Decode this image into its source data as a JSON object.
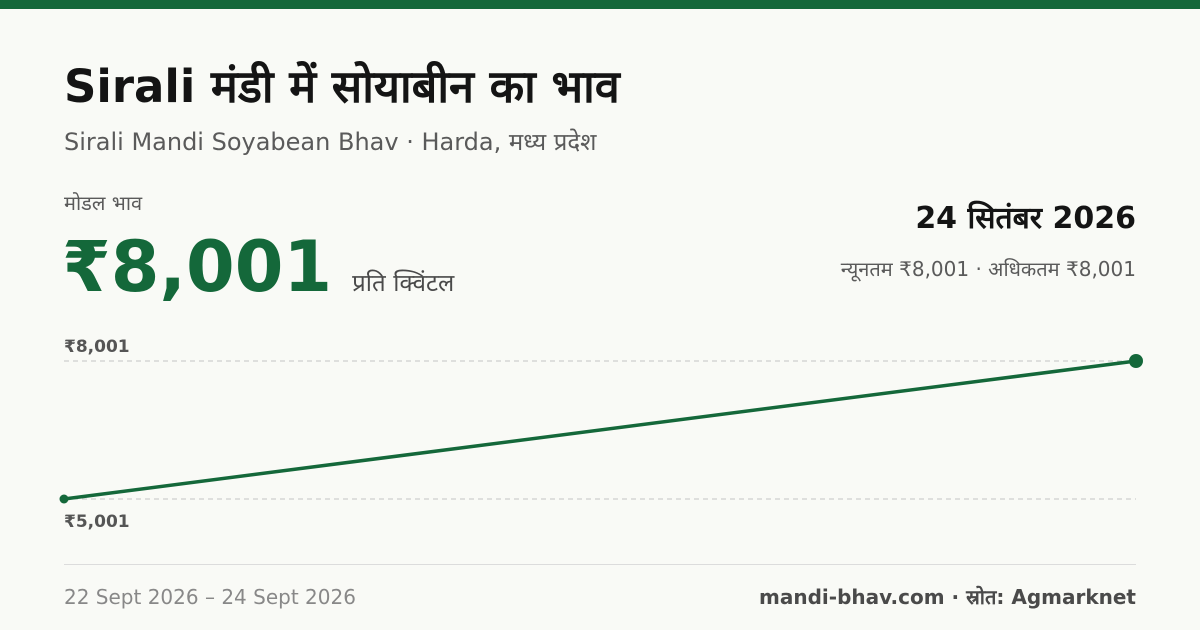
{
  "header": {
    "title": "Sirali मंडी में सोयाबीन का भाव",
    "subtitle": "Sirali Mandi Soyabean Bhav · Harda, मध्य प्रदेश"
  },
  "price": {
    "label": "मोडल भाव",
    "value": "₹8,001",
    "unit": "प्रति क्विंटल"
  },
  "date_block": {
    "date": "24 सितंबर 2026",
    "range": "न्यूनतम ₹8,001 · अधिकतम ₹8,001"
  },
  "chart_data": {
    "type": "line",
    "x": [
      "22 Sept 2026",
      "24 Sept 2026"
    ],
    "series": [
      {
        "values": [
          5001,
          8001
        ]
      }
    ],
    "ylim": [
      5001,
      8001
    ],
    "yticks": [
      8001,
      5001
    ],
    "ytick_labels": [
      "₹8,001",
      "₹5,001"
    ],
    "grid": true,
    "color": "#14683a"
  },
  "footer": {
    "date_range": "22 Sept 2026 – 24 Sept 2026",
    "source": "mandi-bhav.com · स्रोत: Agmarknet"
  }
}
